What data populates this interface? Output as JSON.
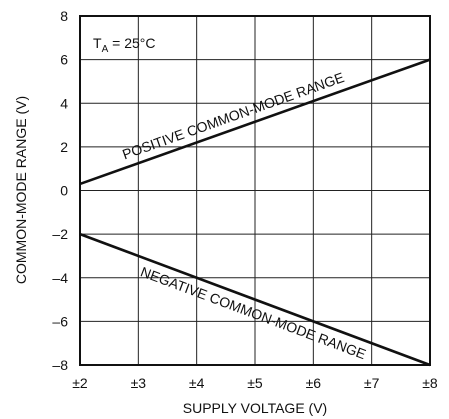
{
  "chart_data": {
    "type": "line",
    "xlabel": "SUPPLY VOLTAGE (V)",
    "ylabel": "COMMON-MODE RANGE (V)",
    "x_tick_labels": [
      "±2",
      "±3",
      "±4",
      "±5",
      "±6",
      "±7",
      "±8"
    ],
    "x_ticks": [
      2,
      3,
      4,
      5,
      6,
      7,
      8
    ],
    "y_ticks": [
      -8,
      -6,
      -4,
      -2,
      0,
      2,
      4,
      6,
      8
    ],
    "y_tick_labels": [
      "–8",
      "–6",
      "–4",
      "–2",
      "0",
      "2",
      "4",
      "6",
      "8"
    ],
    "xlim": [
      2,
      8
    ],
    "ylim": [
      -8,
      8
    ],
    "grid": true,
    "condition": {
      "prefix": "T",
      "subscript": "A",
      "suffix": " = 25°C"
    },
    "series": [
      {
        "name": "POSITIVE COMMON-MODE RANGE",
        "x": [
          2,
          8
        ],
        "y": [
          0.3,
          6.0
        ]
      },
      {
        "name": "NEGATIVE COMMON-MODE RANGE",
        "x": [
          2,
          8
        ],
        "y": [
          -2.0,
          -8.0
        ]
      }
    ]
  }
}
